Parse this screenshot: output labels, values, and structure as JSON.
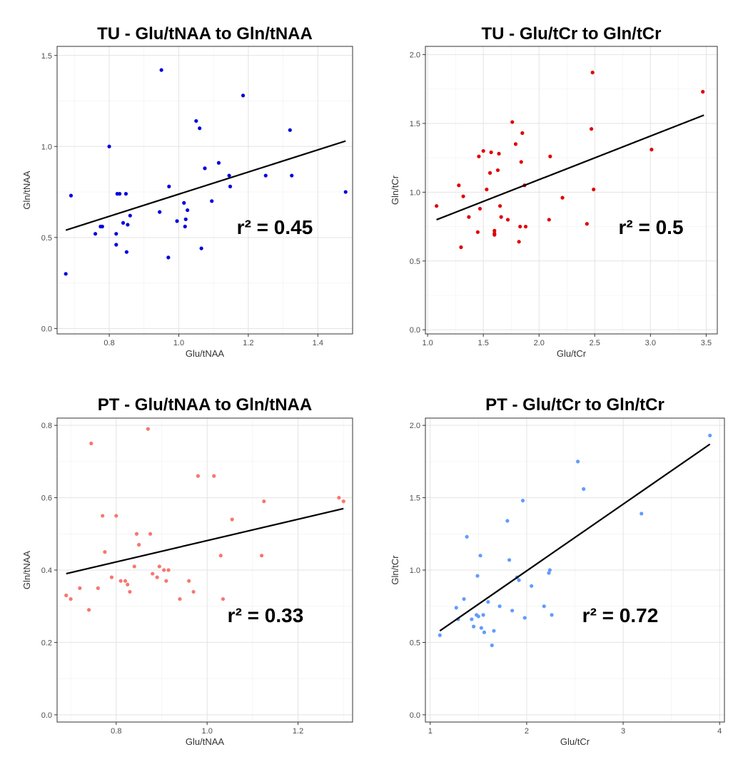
{
  "chart_data": [
    {
      "type": "scatter",
      "title": "TU - Glu/tNAA to Gln/tNAA",
      "xlabel": "Glu/tNAA",
      "ylabel": "Gln/tNAA",
      "xlim": [
        0.65,
        1.5
      ],
      "ylim": [
        -0.03,
        1.55
      ],
      "xticks": [
        0.8,
        1.0,
        1.2,
        1.4
      ],
      "xtick_labels": [
        "0.8",
        "1.0",
        "1.2",
        "1.4"
      ],
      "yticks": [
        0.0,
        0.5,
        1.0,
        1.5
      ],
      "ytick_labels": [
        "0.0",
        "0.5",
        "1.0",
        "1.5"
      ],
      "grid": true,
      "point_color": "#0000dd",
      "annotation": "r² = 0.45",
      "fit_line": {
        "x": [
          0.675,
          1.48
        ],
        "y": [
          0.54,
          1.03
        ]
      },
      "points": {
        "x": [
          0.675,
          0.69,
          0.76,
          0.775,
          0.78,
          0.8,
          0.82,
          0.82,
          0.823,
          0.83,
          0.84,
          0.848,
          0.85,
          0.853,
          0.86,
          0.945,
          0.95,
          0.97,
          0.972,
          0.995,
          1.015,
          1.018,
          1.02,
          1.025,
          1.05,
          1.06,
          1.065,
          1.075,
          1.095,
          1.115,
          1.145,
          1.148,
          1.185,
          1.25,
          1.32,
          1.325,
          1.48
        ],
        "y": [
          0.3,
          0.73,
          0.52,
          0.56,
          0.56,
          1.0,
          0.46,
          0.52,
          0.74,
          0.74,
          0.58,
          0.74,
          0.42,
          0.57,
          0.62,
          0.64,
          1.42,
          0.39,
          0.78,
          0.59,
          0.69,
          0.56,
          0.6,
          0.65,
          1.14,
          1.1,
          0.44,
          0.88,
          0.7,
          0.91,
          0.84,
          0.78,
          1.28,
          0.84,
          1.09,
          0.84,
          0.75
        ]
      }
    },
    {
      "type": "scatter",
      "title": "TU - Glu/tCr to Gln/tCr",
      "xlabel": "Glu/tCr",
      "ylabel": "Gln/tCr",
      "xlim": [
        0.98,
        3.6
      ],
      "ylim": [
        -0.03,
        2.06
      ],
      "xticks": [
        1.0,
        1.5,
        2.0,
        2.5,
        3.0,
        3.5
      ],
      "xtick_labels": [
        "1.0",
        "1.5",
        "2.0",
        "2.5",
        "3.0",
        "3.5"
      ],
      "yticks": [
        0.0,
        0.5,
        1.0,
        1.5,
        2.0
      ],
      "ytick_labels": [
        "0.0",
        "0.5",
        "1.0",
        "1.5",
        "2.0"
      ],
      "grid": true,
      "point_color": "#e00000",
      "annotation": "r² = 0.5",
      "fit_line": {
        "x": [
          1.08,
          3.48
        ],
        "y": [
          0.8,
          1.56
        ]
      },
      "points": {
        "x": [
          1.08,
          1.28,
          1.3,
          1.32,
          1.37,
          1.45,
          1.46,
          1.47,
          1.5,
          1.53,
          1.56,
          1.57,
          1.6,
          1.6,
          1.6,
          1.63,
          1.64,
          1.65,
          1.66,
          1.72,
          1.76,
          1.79,
          1.82,
          1.83,
          1.84,
          1.85,
          1.87,
          1.88,
          2.09,
          2.1,
          2.21,
          2.43,
          2.47,
          2.48,
          2.49,
          3.01,
          3.47
        ],
        "y": [
          0.9,
          1.05,
          0.6,
          0.97,
          0.82,
          0.71,
          1.26,
          0.88,
          1.3,
          1.02,
          1.14,
          1.29,
          0.72,
          0.7,
          0.69,
          1.16,
          1.28,
          0.9,
          0.82,
          0.8,
          1.51,
          1.35,
          0.64,
          0.75,
          1.22,
          1.43,
          1.05,
          0.75,
          0.8,
          1.26,
          0.96,
          0.77,
          1.46,
          1.87,
          1.02,
          1.31,
          1.73
        ]
      }
    },
    {
      "type": "scatter",
      "title": "PT - Glu/tNAA to Gln/tNAA",
      "xlabel": "Glu/tNAA",
      "ylabel": "Gln/tNAA",
      "xlim": [
        0.67,
        1.32
      ],
      "ylim": [
        -0.02,
        0.82
      ],
      "xticks": [
        0.8,
        1.0,
        1.2
      ],
      "xtick_labels": [
        "0.8",
        "1.0",
        "1.2"
      ],
      "yticks": [
        0.0,
        0.2,
        0.4,
        0.6,
        0.8
      ],
      "ytick_labels": [
        "0.0",
        "0.2",
        "0.4",
        "0.6",
        "0.8"
      ],
      "grid": true,
      "point_color": "#f8766d",
      "annotation": "r² = 0.33",
      "fit_line": {
        "x": [
          0.69,
          1.3
        ],
        "y": [
          0.39,
          0.57
        ]
      },
      "points": {
        "x": [
          0.69,
          0.7,
          0.72,
          0.74,
          0.745,
          0.76,
          0.77,
          0.775,
          0.79,
          0.8,
          0.81,
          0.82,
          0.825,
          0.83,
          0.84,
          0.845,
          0.85,
          0.87,
          0.875,
          0.88,
          0.89,
          0.895,
          0.905,
          0.91,
          0.915,
          0.94,
          0.96,
          0.97,
          0.98,
          1.015,
          1.03,
          1.035,
          1.055,
          1.12,
          1.125,
          1.29,
          1.3
        ],
        "y": [
          0.33,
          0.32,
          0.35,
          0.29,
          0.75,
          0.35,
          0.55,
          0.45,
          0.38,
          0.55,
          0.37,
          0.37,
          0.36,
          0.34,
          0.41,
          0.5,
          0.47,
          0.79,
          0.5,
          0.39,
          0.38,
          0.41,
          0.4,
          0.37,
          0.4,
          0.32,
          0.37,
          0.34,
          0.66,
          0.66,
          0.44,
          0.32,
          0.54,
          0.44,
          0.59,
          0.6,
          0.59
        ]
      }
    },
    {
      "type": "scatter",
      "title": "PT - Glu/tCr to Gln/tCr",
      "xlabel": "Glu/tCr",
      "ylabel": "Gln/tCr",
      "xlim": [
        0.95,
        4.05
      ],
      "ylim": [
        -0.05,
        2.05
      ],
      "xticks": [
        1,
        2,
        3,
        4
      ],
      "xtick_labels": [
        "1",
        "2",
        "3",
        "4"
      ],
      "yticks": [
        0.0,
        0.5,
        1.0,
        1.5,
        2.0
      ],
      "ytick_labels": [
        "0.0",
        "0.5",
        "1.0",
        "1.5",
        "2.0"
      ],
      "grid": true,
      "point_color": "#619cff",
      "annotation": "r² = 0.72",
      "fit_line": {
        "x": [
          1.1,
          3.9
        ],
        "y": [
          0.58,
          1.87
        ]
      },
      "points": {
        "x": [
          1.1,
          1.27,
          1.29,
          1.35,
          1.38,
          1.43,
          1.45,
          1.48,
          1.49,
          1.5,
          1.52,
          1.53,
          1.55,
          1.56,
          1.6,
          1.64,
          1.66,
          1.72,
          1.8,
          1.82,
          1.85,
          1.9,
          1.92,
          1.96,
          1.98,
          2.05,
          2.18,
          2.23,
          2.24,
          2.26,
          2.53,
          2.59,
          3.19,
          3.9
        ],
        "y": [
          0.55,
          0.74,
          0.66,
          0.8,
          1.23,
          0.66,
          0.61,
          0.69,
          0.96,
          0.68,
          1.1,
          0.6,
          0.69,
          0.57,
          0.78,
          0.48,
          0.58,
          0.75,
          1.34,
          1.07,
          0.72,
          0.95,
          0.93,
          1.48,
          0.67,
          0.89,
          0.75,
          0.98,
          1.0,
          0.69,
          1.75,
          1.56,
          1.39,
          1.93
        ]
      }
    }
  ]
}
